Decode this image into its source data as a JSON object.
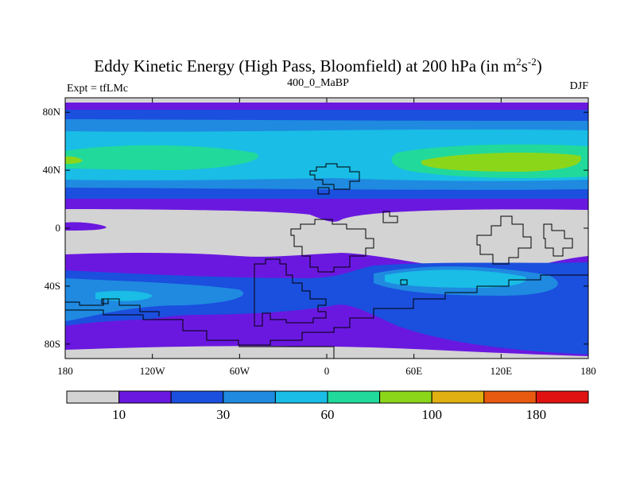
{
  "title": {
    "main": "Eddy Kinetic Energy (High Pass, Bloomfield) at 200 hPa (in m",
    "sup1": "2",
    "mid": "s",
    "sup2": "-2",
    "end": ")"
  },
  "subtitle": "400_0_MaBP",
  "left_label": "Expt = tfLMc",
  "right_label": "DJF",
  "map": {
    "projection": "equirectangular",
    "lon_range": [
      -180,
      180
    ],
    "lat_range": [
      -90,
      90
    ],
    "lat_ticks": [
      {
        "value": 80,
        "label": "80N"
      },
      {
        "value": 40,
        "label": "40N"
      },
      {
        "value": 0,
        "label": "0"
      },
      {
        "value": -40,
        "label": "40S"
      },
      {
        "value": -80,
        "label": "80S"
      }
    ],
    "lon_ticks": [
      {
        "value": -180,
        "label": "180"
      },
      {
        "value": -120,
        "label": "120W"
      },
      {
        "value": -60,
        "label": "60W"
      },
      {
        "value": 0,
        "label": "0"
      },
      {
        "value": 60,
        "label": "60E"
      },
      {
        "value": 120,
        "label": "120E"
      },
      {
        "value": 180,
        "label": "180"
      }
    ]
  },
  "colorbar": {
    "colors": [
      "#d3d3d3",
      "#6a18e0",
      "#1b4fde",
      "#1f8ae0",
      "#19bde6",
      "#21d99b",
      "#8cd61a",
      "#e0b012",
      "#e85a10",
      "#e01212"
    ],
    "labels": [
      {
        "after_box": 1,
        "text": "10"
      },
      {
        "after_box": 3,
        "text": "30"
      },
      {
        "after_box": 5,
        "text": "60"
      },
      {
        "after_box": 7,
        "text": "100"
      },
      {
        "after_box": 9,
        "text": "180"
      }
    ]
  },
  "palette": {
    "grey": "#d3d3d3",
    "purple": "#6a18e0",
    "blue": "#1b4fde",
    "mid_blue": "#1f8ae0",
    "cyan": "#19bde6",
    "green": "#21d99b",
    "lime": "#8cd61a"
  }
}
